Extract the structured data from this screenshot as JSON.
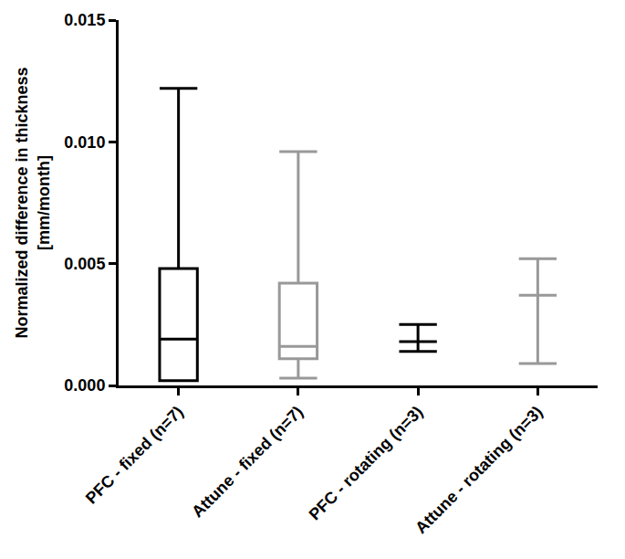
{
  "chart_data": {
    "type": "box",
    "ylabel": [
      "Normalized difference in thickness",
      "[mm/month]"
    ],
    "categories": [
      "PFC - fixed (n=7)",
      "Attune - fixed (n=7)",
      "PFC - rotating (n=3)",
      "Attune - rotating (n=3)"
    ],
    "min": [
      0.0002,
      0.0003,
      0.0014,
      0.0009
    ],
    "q1": [
      0.0002,
      0.0011,
      0.0018,
      0.0037
    ],
    "median": [
      0.0019,
      0.0016,
      0.0018,
      0.0037
    ],
    "q3": [
      0.0048,
      0.0042,
      0.0018,
      0.0037
    ],
    "max": [
      0.0122,
      0.0096,
      0.0025,
      0.0052
    ],
    "colors": [
      "#000000",
      "#999999",
      "#000000",
      "#999999"
    ],
    "ylim": [
      0,
      0.015
    ],
    "yticks": [
      {
        "value": 0,
        "label": "0.000"
      },
      {
        "value": 0.005,
        "label": "0.005"
      },
      {
        "value": 0.01,
        "label": "0.010"
      },
      {
        "value": 0.015,
        "label": "0.015"
      }
    ],
    "grid": false
  }
}
